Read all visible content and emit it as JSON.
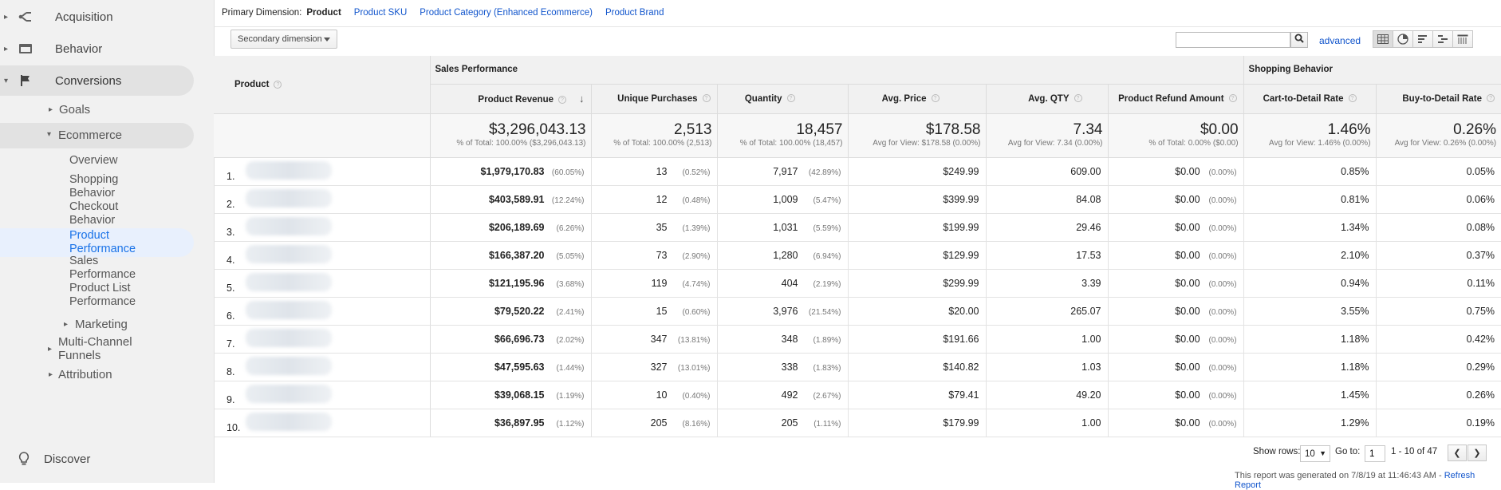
{
  "sidebar": {
    "acquisition": "Acquisition",
    "behavior": "Behavior",
    "conversions": "Conversions",
    "goals": "Goals",
    "ecommerce": "Ecommerce",
    "ecommerce_items": [
      "Overview",
      "Shopping\nBehavior",
      "Checkout\nBehavior",
      "Product\nPerformance",
      "Sales\nPerformance",
      "Product List\nPerformance"
    ],
    "marketing": "Marketing",
    "multichannel": "Multi-Channel\nFunnels",
    "attribution": "Attribution",
    "discover": "Discover"
  },
  "primary_dimension": {
    "label": "Primary Dimension:",
    "current": "Product",
    "links": [
      "Product SKU",
      "Product Category (Enhanced Ecommerce)",
      "Product Brand"
    ]
  },
  "toolbar": {
    "secondary_dimension": "Secondary dimension",
    "search_placeholder": "",
    "advanced": "advanced"
  },
  "table": {
    "product_header": "Product",
    "group_sales": "Sales Performance",
    "group_shopping": "Shopping Behavior",
    "columns": [
      "Product Revenue",
      "Unique Purchases",
      "Quantity",
      "Avg. Price",
      "Avg. QTY",
      "Product Refund Amount",
      "Cart-to-Detail Rate",
      "Buy-to-Detail Rate"
    ],
    "totals": [
      {
        "big": "$3,296,043.13",
        "sub": "% of Total: 100.00% ($3,296,043.13)"
      },
      {
        "big": "2,513",
        "sub": "% of Total: 100.00% (2,513)"
      },
      {
        "big": "18,457",
        "sub": "% of Total: 100.00% (18,457)"
      },
      {
        "big": "$178.58",
        "sub": "Avg for View: $178.58 (0.00%)"
      },
      {
        "big": "7.34",
        "sub": "Avg for View: 7.34 (0.00%)"
      },
      {
        "big": "$0.00",
        "sub": "% of Total: 0.00% ($0.00)"
      },
      {
        "big": "1.46%",
        "sub": "Avg for View: 1.46% (0.00%)"
      },
      {
        "big": "0.26%",
        "sub": "Avg for View: 0.26% (0.00%)"
      }
    ],
    "rows": [
      {
        "idx": "1.",
        "rev": "$1,979,170.83",
        "rev_pct": "(60.05%)",
        "up": "13",
        "up_pct": "(0.52%)",
        "qty": "7,917",
        "qty_pct": "(42.89%)",
        "price": "$249.99",
        "avgqty": "609.00",
        "refund": "$0.00",
        "refund_pct": "(0.00%)",
        "cart": "0.85%",
        "buy": "0.05%"
      },
      {
        "idx": "2.",
        "rev": "$403,589.91",
        "rev_pct": "(12.24%)",
        "up": "12",
        "up_pct": "(0.48%)",
        "qty": "1,009",
        "qty_pct": "(5.47%)",
        "price": "$399.99",
        "avgqty": "84.08",
        "refund": "$0.00",
        "refund_pct": "(0.00%)",
        "cart": "0.81%",
        "buy": "0.06%"
      },
      {
        "idx": "3.",
        "rev": "$206,189.69",
        "rev_pct": "(6.26%)",
        "up": "35",
        "up_pct": "(1.39%)",
        "qty": "1,031",
        "qty_pct": "(5.59%)",
        "price": "$199.99",
        "avgqty": "29.46",
        "refund": "$0.00",
        "refund_pct": "(0.00%)",
        "cart": "1.34%",
        "buy": "0.08%"
      },
      {
        "idx": "4.",
        "rev": "$166,387.20",
        "rev_pct": "(5.05%)",
        "up": "73",
        "up_pct": "(2.90%)",
        "qty": "1,280",
        "qty_pct": "(6.94%)",
        "price": "$129.99",
        "avgqty": "17.53",
        "refund": "$0.00",
        "refund_pct": "(0.00%)",
        "cart": "2.10%",
        "buy": "0.37%"
      },
      {
        "idx": "5.",
        "rev": "$121,195.96",
        "rev_pct": "(3.68%)",
        "up": "119",
        "up_pct": "(4.74%)",
        "qty": "404",
        "qty_pct": "(2.19%)",
        "price": "$299.99",
        "avgqty": "3.39",
        "refund": "$0.00",
        "refund_pct": "(0.00%)",
        "cart": "0.94%",
        "buy": "0.11%"
      },
      {
        "idx": "6.",
        "rev": "$79,520.22",
        "rev_pct": "(2.41%)",
        "up": "15",
        "up_pct": "(0.60%)",
        "qty": "3,976",
        "qty_pct": "(21.54%)",
        "price": "$20.00",
        "avgqty": "265.07",
        "refund": "$0.00",
        "refund_pct": "(0.00%)",
        "cart": "3.55%",
        "buy": "0.75%"
      },
      {
        "idx": "7.",
        "rev": "$66,696.73",
        "rev_pct": "(2.02%)",
        "up": "347",
        "up_pct": "(13.81%)",
        "qty": "348",
        "qty_pct": "(1.89%)",
        "price": "$191.66",
        "avgqty": "1.00",
        "refund": "$0.00",
        "refund_pct": "(0.00%)",
        "cart": "1.18%",
        "buy": "0.42%"
      },
      {
        "idx": "8.",
        "rev": "$47,595.63",
        "rev_pct": "(1.44%)",
        "up": "327",
        "up_pct": "(13.01%)",
        "qty": "338",
        "qty_pct": "(1.83%)",
        "price": "$140.82",
        "avgqty": "1.03",
        "refund": "$0.00",
        "refund_pct": "(0.00%)",
        "cart": "1.18%",
        "buy": "0.29%"
      },
      {
        "idx": "9.",
        "rev": "$39,068.15",
        "rev_pct": "(1.19%)",
        "up": "10",
        "up_pct": "(0.40%)",
        "qty": "492",
        "qty_pct": "(2.67%)",
        "price": "$79.41",
        "avgqty": "49.20",
        "refund": "$0.00",
        "refund_pct": "(0.00%)",
        "cart": "1.45%",
        "buy": "0.26%"
      },
      {
        "idx": "10.",
        "rev": "$36,897.95",
        "rev_pct": "(1.12%)",
        "up": "205",
        "up_pct": "(8.16%)",
        "qty": "205",
        "qty_pct": "(1.11%)",
        "price": "$179.99",
        "avgqty": "1.00",
        "refund": "$0.00",
        "refund_pct": "(0.00%)",
        "cart": "1.29%",
        "buy": "0.19%"
      }
    ]
  },
  "footer": {
    "show_rows_label": "Show rows:",
    "show_rows_value": "10",
    "goto_label": "Go to:",
    "goto_value": "1",
    "range": "1 - 10 of 47",
    "generated": "This report was generated on 7/8/19 at 11:46:43 AM - ",
    "refresh": "Refresh Report"
  },
  "colors": {
    "link": "#1155cc",
    "active_nav": "#1a73e8",
    "sidebar_bg": "#f1f1f1"
  }
}
